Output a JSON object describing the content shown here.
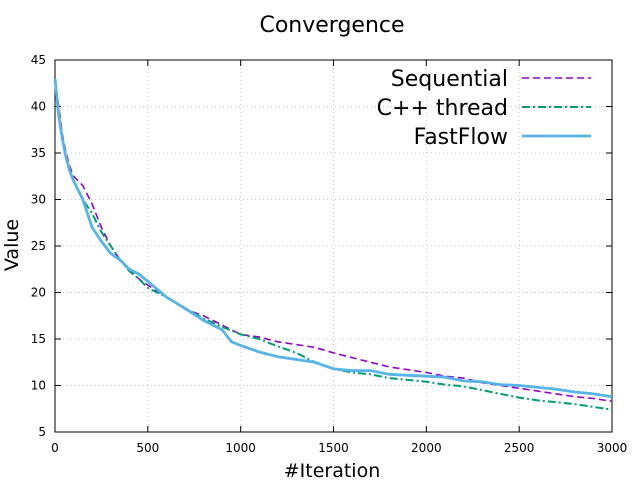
{
  "chart_data": {
    "type": "line",
    "title": "Convergence",
    "xlabel": "#Iteration",
    "ylabel": "Value",
    "xlim": [
      0,
      3000
    ],
    "ylim": [
      5,
      45
    ],
    "xticks": [
      0,
      500,
      1000,
      1500,
      2000,
      2500,
      3000
    ],
    "yticks": [
      5,
      10,
      15,
      20,
      25,
      30,
      35,
      40,
      45
    ],
    "grid": true,
    "legend_position": "top-right",
    "series": [
      {
        "name": "Sequential",
        "color": "#9400d3",
        "dash": "dashed",
        "x": [
          0,
          20,
          40,
          60,
          80,
          100,
          150,
          200,
          250,
          300,
          350,
          400,
          450,
          500,
          600,
          700,
          800,
          900,
          1000,
          1100,
          1200,
          1300,
          1400,
          1500,
          1600,
          1700,
          1800,
          1900,
          2000,
          2100,
          2200,
          2300,
          2400,
          2500,
          2600,
          2700,
          2800,
          2900,
          3000
        ],
        "y": [
          43,
          40,
          37,
          35,
          33.5,
          32.5,
          31.5,
          29.5,
          27,
          25,
          23.5,
          22.5,
          21.5,
          20.8,
          19.5,
          18.2,
          17.5,
          16.5,
          15.5,
          15.2,
          14.7,
          14.4,
          14.1,
          13.5,
          13,
          12.5,
          12,
          11.7,
          11.4,
          11,
          10.8,
          10.3,
          10,
          9.7,
          9.4,
          9.1,
          8.8,
          8.6,
          8.3
        ]
      },
      {
        "name": "C++ thread",
        "color": "#009e73",
        "dash": "dash-dot",
        "x": [
          0,
          20,
          40,
          60,
          80,
          100,
          150,
          200,
          250,
          300,
          350,
          400,
          450,
          500,
          600,
          700,
          800,
          900,
          1000,
          1100,
          1200,
          1300,
          1400,
          1500,
          1600,
          1700,
          1800,
          1900,
          2000,
          2100,
          2200,
          2300,
          2400,
          2500,
          2600,
          2700,
          2800,
          2900,
          3000
        ],
        "y": [
          43,
          39.5,
          36.5,
          34.5,
          33,
          32,
          30,
          28.5,
          26.5,
          25,
          23.5,
          22.3,
          21.5,
          20.5,
          19.5,
          18.3,
          17.2,
          16.3,
          15.5,
          15,
          14.2,
          13.5,
          12.5,
          11.8,
          11.4,
          11.2,
          10.8,
          10.6,
          10.4,
          10.1,
          9.9,
          9.5,
          9.1,
          8.7,
          8.4,
          8.2,
          8,
          7.7,
          7.4
        ]
      },
      {
        "name": "FastFlow",
        "color": "#56b4e9",
        "dash": "solid",
        "x": [
          0,
          20,
          40,
          60,
          80,
          100,
          150,
          200,
          250,
          300,
          350,
          400,
          450,
          500,
          600,
          700,
          800,
          900,
          950,
          1000,
          1100,
          1200,
          1300,
          1400,
          1500,
          1600,
          1700,
          1800,
          1900,
          2000,
          2100,
          2200,
          2300,
          2400,
          2500,
          2600,
          2700,
          2800,
          2900,
          3000
        ],
        "y": [
          43,
          39,
          36.5,
          34.5,
          33,
          32,
          30,
          27,
          25.5,
          24.2,
          23.5,
          22.5,
          22,
          21.2,
          19.5,
          18.3,
          17,
          16,
          14.7,
          14.3,
          13.6,
          13.1,
          12.8,
          12.5,
          11.8,
          11.6,
          11.6,
          11.2,
          11.1,
          11,
          10.9,
          10.5,
          10.4,
          10.1,
          10,
          9.8,
          9.6,
          9.3,
          9.1,
          8.8
        ]
      }
    ]
  }
}
